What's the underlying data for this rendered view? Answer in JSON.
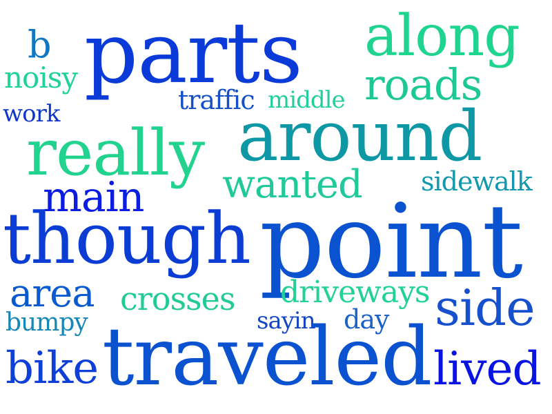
{
  "words": {
    "parts": {
      "text": "parts",
      "color": "#0a3ad8"
    },
    "along": {
      "text": "along",
      "color": "#1fd48f"
    },
    "b": {
      "text": "b",
      "color": "#1277c2"
    },
    "noisy": {
      "text": "noisy",
      "color": "#1ed29a"
    },
    "roads": {
      "text": "roads",
      "color": "#1ec894"
    },
    "traffic": {
      "text": "traffic",
      "color": "#1550c8"
    },
    "middle": {
      "text": "middle",
      "color": "#20cf9a"
    },
    "work": {
      "text": "work",
      "color": "#1036c9"
    },
    "around": {
      "text": "around",
      "color": "#0e98a6"
    },
    "really": {
      "text": "really",
      "color": "#21d38f"
    },
    "wanted": {
      "text": "wanted",
      "color": "#1fc99a"
    },
    "sidewalk": {
      "text": "sidewalk",
      "color": "#1398ae"
    },
    "main": {
      "text": "main",
      "color": "#0a1de0"
    },
    "though": {
      "text": "though",
      "color": "#0b3dd5"
    },
    "point": {
      "text": "point",
      "color": "#0a52d0"
    },
    "area": {
      "text": "area",
      "color": "#0a5bcf"
    },
    "crosses": {
      "text": "crosses",
      "color": "#22cb96"
    },
    "driveways": {
      "text": "driveways",
      "color": "#22d196"
    },
    "side": {
      "text": "side",
      "color": "#1750cc"
    },
    "bumpy": {
      "text": "bumpy",
      "color": "#1787b8"
    },
    "sayin": {
      "text": "sayin",
      "color": "#1545c4"
    },
    "day": {
      "text": "day",
      "color": "#1a62c7"
    },
    "traveled": {
      "text": "traveled",
      "color": "#0a52d0"
    },
    "bike": {
      "text": "bike",
      "color": "#0e40d8"
    },
    "lived": {
      "text": "lived",
      "color": "#0a14e2"
    }
  }
}
